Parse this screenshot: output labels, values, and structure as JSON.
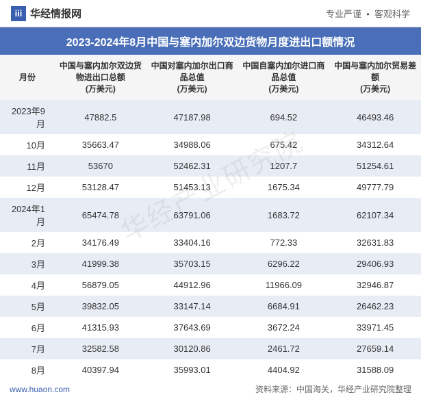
{
  "header": {
    "logo_glyph": "iii",
    "logo_text": "华经情报网",
    "tagline_left": "专业严谨",
    "tagline_right": "客观科学"
  },
  "title": "2023-2024年8月中国与塞内加尔双边货物月度进出口额情况",
  "watermark": "华经产业研究院",
  "table": {
    "columns": [
      "月份",
      "中国与塞内加尔双边货物进出口总额\n(万美元)",
      "中国对塞内加尔出口商品总值\n(万美元)",
      "中国自塞内加尔进口商品总值\n(万美元)",
      "中国与塞内加尔贸易差额\n(万美元)"
    ],
    "rows": [
      [
        "2023年9月",
        "47882.5",
        "47187.98",
        "694.52",
        "46493.46"
      ],
      [
        "10月",
        "35663.47",
        "34988.06",
        "675.42",
        "34312.64"
      ],
      [
        "11月",
        "53670",
        "52462.31",
        "1207.7",
        "51254.61"
      ],
      [
        "12月",
        "53128.47",
        "51453.13",
        "1675.34",
        "49777.79"
      ],
      [
        "2024年1月",
        "65474.78",
        "63791.06",
        "1683.72",
        "62107.34"
      ],
      [
        "2月",
        "34176.49",
        "33404.16",
        "772.33",
        "32631.83"
      ],
      [
        "3月",
        "41999.38",
        "35703.15",
        "6296.22",
        "29406.93"
      ],
      [
        "4月",
        "56879.05",
        "44912.96",
        "11966.09",
        "32946.87"
      ],
      [
        "5月",
        "39832.05",
        "33147.14",
        "6684.91",
        "26462.23"
      ],
      [
        "6月",
        "41315.93",
        "37643.69",
        "3672.24",
        "33971.45"
      ],
      [
        "7月",
        "32582.58",
        "30120.86",
        "2461.72",
        "27659.14"
      ],
      [
        "8月",
        "40397.94",
        "35993.01",
        "4404.92",
        "31588.09"
      ]
    ]
  },
  "footer": {
    "left": "www.huaon.com",
    "right": "资料来源：中国海关，华经产业研究院整理"
  },
  "colors": {
    "title_bg": "#4a6fb8",
    "row_odd_bg": "#e8edf5",
    "row_even_bg": "#ffffff",
    "header_bg": "#f5f5f5",
    "logo_bg": "#3a5fb0"
  }
}
